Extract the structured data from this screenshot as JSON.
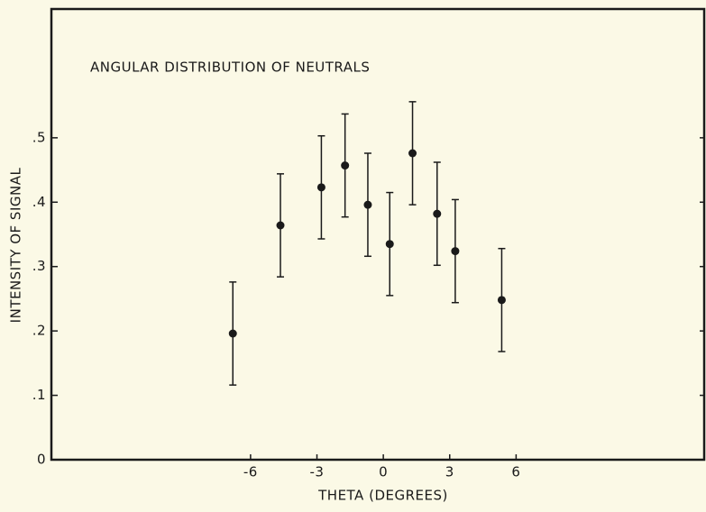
{
  "chart_data": {
    "type": "scatter",
    "title": "ANGULAR DISTRIBUTION OF NEUTRALS",
    "x_label": "THETA (DEGREES)",
    "y_label": "INTENSITY OF SIGNAL",
    "x": [
      -6.8,
      -4.65,
      -2.8,
      -1.73,
      -0.7,
      0.29,
      1.32,
      2.43,
      3.25,
      5.35
    ],
    "values": [
      0.196,
      0.364,
      0.423,
      0.457,
      0.396,
      0.335,
      0.476,
      0.382,
      0.324,
      0.248
    ],
    "errors": [
      0.08,
      0.08,
      0.08,
      0.08,
      0.08,
      0.08,
      0.08,
      0.08,
      0.08,
      0.08
    ],
    "color": "#1a1a1a",
    "xlim": [
      -15,
      14.5
    ],
    "ylim": [
      0,
      0.7
    ],
    "xticks": [
      -6,
      -3,
      0,
      3,
      6
    ],
    "yticks": [
      0,
      {
        "value": 0.1,
        "label": ".1"
      },
      {
        "value": 0.2,
        "label": ".2"
      },
      {
        "value": 0.3,
        "label": ".3"
      },
      {
        "value": 0.4,
        "label": ".4"
      },
      {
        "value": 0.5,
        "label": ".5"
      }
    ],
    "grid": false
  }
}
